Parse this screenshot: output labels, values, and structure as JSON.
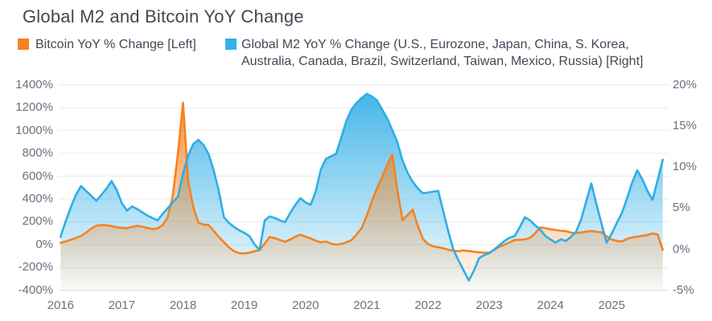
{
  "title": "Global M2 and Bitcoin YoY Change",
  "legend": {
    "items": [
      {
        "id": "bitcoin",
        "color": "#f58220",
        "lines": [
          "Bitcoin YoY % Change [Left]"
        ]
      },
      {
        "id": "global-m2",
        "color": "#33b1e7",
        "lines": [
          "Global M2 YoY % Change (U.S., Eurozone, Japan, China, S. Korea,",
          "Australia, Canada, Brazil, Switzerland, Taiwan, Mexico, Russia) [Right]"
        ]
      }
    ]
  },
  "chart_data": {
    "type": "area",
    "title": "Global M2 and Bitcoin YoY Change",
    "grid": true,
    "legend_position": "top-left",
    "x_unit": "month",
    "x_start_month": "2016-01",
    "x_end_month": "2025-11",
    "x_tick_labels": [
      "2016",
      "2017",
      "2018",
      "2019",
      "2020",
      "2021",
      "2022",
      "2023",
      "2024",
      "2025"
    ],
    "left_axis": {
      "min": -400,
      "max": 1400,
      "tick_step": 200,
      "unit": "%",
      "tick_labels": [
        "1400%",
        "1200%",
        "1000%",
        "800%",
        "600%",
        "400%",
        "200%",
        "0%",
        "-200%",
        "-400%"
      ]
    },
    "right_axis": {
      "min": -5,
      "max": 20,
      "tick_step": 5,
      "unit": "%",
      "tick_labels": [
        "20%",
        "15%",
        "10%",
        "5%",
        "0%",
        "-5%"
      ]
    },
    "series": [
      {
        "name": "Bitcoin YoY % Change",
        "axis": "left",
        "color": "#f58220",
        "values": [
          16,
          28,
          42,
          58,
          76,
          105,
          140,
          166,
          172,
          170,
          163,
          152,
          148,
          144,
          155,
          165,
          158,
          146,
          136,
          142,
          172,
          240,
          430,
          800,
          1245,
          560,
          330,
          192,
          176,
          172,
          122,
          68,
          22,
          -24,
          -58,
          -74,
          -77,
          -70,
          -58,
          -48,
          10,
          68,
          56,
          40,
          25,
          45,
          70,
          87,
          70,
          55,
          35,
          20,
          28,
          9,
          0,
          6,
          20,
          40,
          90,
          145,
          255,
          380,
          495,
          590,
          700,
          790,
          480,
          215,
          260,
          308,
          165,
          51,
          5,
          -15,
          -22,
          -32,
          -45,
          -53,
          -58,
          -50,
          -56,
          -62,
          -67,
          -70,
          -70,
          -45,
          -18,
          0,
          20,
          41,
          43,
          46,
          60,
          100,
          151,
          145,
          135,
          129,
          122,
          118,
          106,
          101,
          108,
          114,
          120,
          113,
          109,
          72,
          45,
          33,
          29,
          50,
          64,
          70,
          78,
          85,
          99,
          90,
          -45
        ]
      },
      {
        "name": "Global M2 YoY % Change (U.S., Eurozone, Japan, China, S. Korea, Australia, Canada, Brazil, Switzerland, Taiwan, Mexico, Russia)",
        "axis": "right",
        "color": "#2fade6",
        "values": [
          1.5,
          3.4,
          5.1,
          6.6,
          7.7,
          7.1,
          6.5,
          5.9,
          6.6,
          7.4,
          8.3,
          7.2,
          5.6,
          4.7,
          5.2,
          4.9,
          4.5,
          4.1,
          3.8,
          3.5,
          4.3,
          5.0,
          5.7,
          6.4,
          9.2,
          11.4,
          12.8,
          13.3,
          12.7,
          11.6,
          9.6,
          7.1,
          3.9,
          3.2,
          2.7,
          2.3,
          2.0,
          1.6,
          0.6,
          -0.1,
          3.5,
          4.0,
          3.8,
          3.5,
          3.3,
          4.4,
          5.4,
          6.2,
          5.7,
          5.4,
          7.0,
          9.7,
          11.0,
          11.3,
          11.6,
          13.6,
          15.6,
          17.0,
          17.8,
          18.4,
          18.9,
          18.6,
          18.1,
          17.0,
          15.9,
          14.5,
          13.0,
          10.8,
          9.3,
          8.2,
          7.4,
          6.8,
          6.9,
          7.0,
          7.1,
          4.6,
          2.1,
          -0.1,
          -1.4,
          -2.6,
          -3.8,
          -2.6,
          -1.1,
          -0.7,
          -0.5,
          0.0,
          0.5,
          1.0,
          1.4,
          1.6,
          2.7,
          3.9,
          3.5,
          2.9,
          2.4,
          1.6,
          1.2,
          0.8,
          1.2,
          1.0,
          1.5,
          2.1,
          3.6,
          5.8,
          8.0,
          5.5,
          3.1,
          0.8,
          1.9,
          3.2,
          4.4,
          6.2,
          8.1,
          9.6,
          8.5,
          7.1,
          6.0,
          8.4,
          10.9
        ]
      }
    ],
    "style": {
      "grid_color": "#e9ebee",
      "axis_line_color": "#d6dade",
      "text_color": "#68727e",
      "title_color": "#3e4954",
      "background": "#ffffff"
    }
  }
}
